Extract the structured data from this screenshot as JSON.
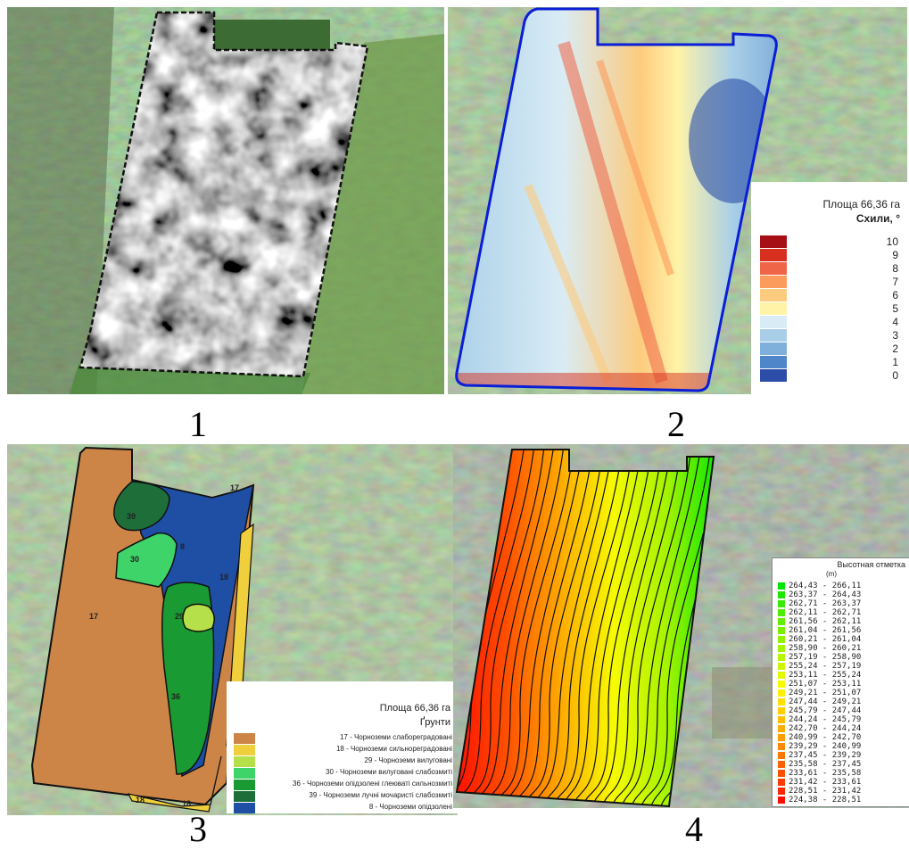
{
  "captions": [
    "1",
    "2",
    "3",
    "4"
  ],
  "map2": {
    "area": "Площа 66,36 га",
    "unit": "Схили, °",
    "classes": [
      {
        "label": "10",
        "color": "#a50f15"
      },
      {
        "label": "9",
        "color": "#d7301f"
      },
      {
        "label": "8",
        "color": "#ef6548"
      },
      {
        "label": "7",
        "color": "#fc9c5c"
      },
      {
        "label": "6",
        "color": "#fdcb7e"
      },
      {
        "label": "5",
        "color": "#fff3a8"
      },
      {
        "label": "4",
        "color": "#d9ecf5"
      },
      {
        "label": "3",
        "color": "#a9cfe8"
      },
      {
        "label": "2",
        "color": "#7fb0dc"
      },
      {
        "label": "1",
        "color": "#4f85c9"
      },
      {
        "label": "0",
        "color": "#2c4ea8"
      }
    ]
  },
  "map3": {
    "area": "Площа 66,36 га",
    "unit": "Ґрунти",
    "polygon_labels": [
      "17",
      "39",
      "30",
      "8",
      "18",
      "29",
      "17",
      "36",
      "18",
      "18"
    ],
    "classes": [
      {
        "label": "17 - Чорноземи слабореградовані",
        "color": "#cc8547"
      },
      {
        "label": "18 - Чорноземи сильнореградовані",
        "color": "#f0cf3c"
      },
      {
        "label": "29 - Чорноземи вилуговані",
        "color": "#b5e04a"
      },
      {
        "label": "30 - Чорноземи вилуговані слабозмиті",
        "color": "#3fd46a"
      },
      {
        "label": "36 - Чорноземи опідзолені глеюваті сильнозмиті",
        "color": "#1a9a32"
      },
      {
        "label": "39 - Чорноземи лучні мочаристі слабозмиті",
        "color": "#1e6e3a"
      },
      {
        "label": "8 - Чорноземи опідзолені",
        "color": "#1f4ea5"
      }
    ]
  },
  "map4": {
    "title": "Высотная отметка",
    "unit": "(m)",
    "classes": [
      {
        "label": "264,43 - 266,11",
        "color": "#00e600"
      },
      {
        "label": "263,37 - 264,43",
        "color": "#1fe800"
      },
      {
        "label": "262,71 - 263,37",
        "color": "#37ea00"
      },
      {
        "label": "262,11 - 262,71",
        "color": "#4dec00"
      },
      {
        "label": "261,56 - 262,11",
        "color": "#63ee00"
      },
      {
        "label": "261,04 - 261,56",
        "color": "#78f000"
      },
      {
        "label": "260,21 - 261,04",
        "color": "#8ef200"
      },
      {
        "label": "258,90 - 260,21",
        "color": "#a3f400"
      },
      {
        "label": "257,19 - 258,90",
        "color": "#b8f500"
      },
      {
        "label": "255,24 - 257,19",
        "color": "#cdf700"
      },
      {
        "label": "253,11 - 255,24",
        "color": "#e2f900"
      },
      {
        "label": "251,07 - 253,11",
        "color": "#f7fb00"
      },
      {
        "label": "249,21 - 251,07",
        "color": "#ffef00"
      },
      {
        "label": "247,44 - 249,21",
        "color": "#ffdf00"
      },
      {
        "label": "245,79 - 247,44",
        "color": "#ffcf00"
      },
      {
        "label": "244,24 - 245,79",
        "color": "#ffbf00"
      },
      {
        "label": "242,70 - 244,24",
        "color": "#ffae00"
      },
      {
        "label": "240,99 - 242,70",
        "color": "#ff9c00"
      },
      {
        "label": "239,29 - 240,99",
        "color": "#ff8a00"
      },
      {
        "label": "237,45 - 239,29",
        "color": "#ff7700"
      },
      {
        "label": "235,58 - 237,45",
        "color": "#ff6400"
      },
      {
        "label": "233,61 - 235,58",
        "color": "#ff5000"
      },
      {
        "label": "231,42 - 233,61",
        "color": "#ff3c00"
      },
      {
        "label": "228,51 - 231,42",
        "color": "#ff2600"
      },
      {
        "label": "224,38 - 228,51",
        "color": "#ff0d00"
      }
    ]
  }
}
